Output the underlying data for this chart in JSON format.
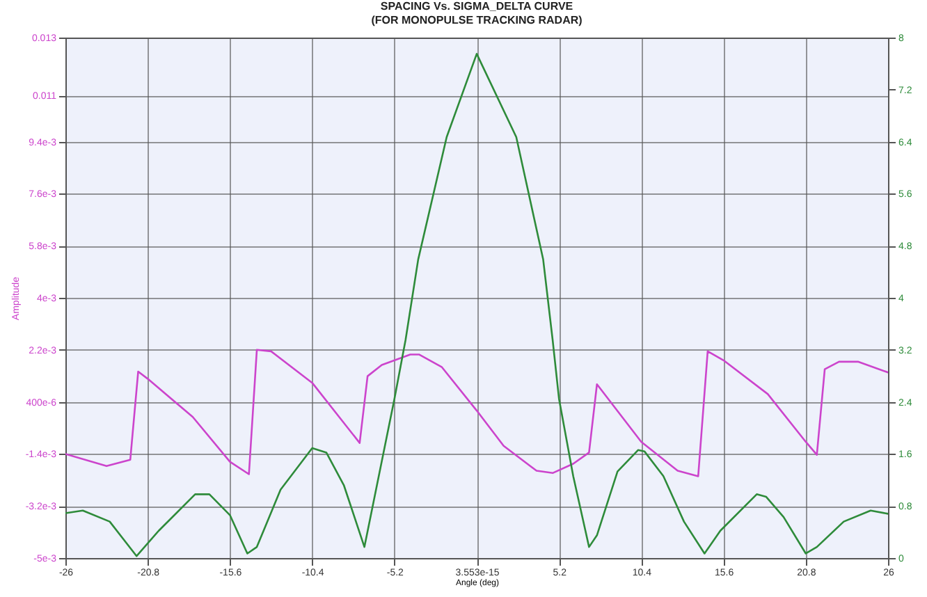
{
  "chart_data": {
    "type": "line",
    "title": "SPACING Vs. SIGMA_DELTA CURVE\n(FOR MONOPULSE TRACKING RADAR)",
    "xlabel": "Angle (deg)",
    "ylabel": "Amplitude",
    "xlim": [
      -26,
      26
    ],
    "xticks": [
      -26,
      -20.8,
      -15.6,
      -10.4,
      -5.2,
      3.553e-15,
      5.2,
      10.4,
      15.6,
      20.8,
      26
    ],
    "ylim": [
      -0.005,
      0.013
    ],
    "yticks": [
      {
        "value": -0.005,
        "label": "-5e-3"
      },
      {
        "value": -0.0032,
        "label": "-3.2e-3"
      },
      {
        "value": -0.0014,
        "label": "-1.4e-3"
      },
      {
        "value": 0.0004,
        "label": "400e-6"
      },
      {
        "value": 0.0022,
        "label": "2.2e-3"
      },
      {
        "value": 0.004,
        "label": "4e-3"
      },
      {
        "value": 0.0058,
        "label": "5.8e-3"
      },
      {
        "value": 0.0076,
        "label": "7.6e-3"
      },
      {
        "value": 0.0094,
        "label": "9.4e-3"
      },
      0.011,
      0.013
    ],
    "y2lim": [
      0,
      8
    ],
    "y2ticks": [
      0,
      0.8,
      1.6,
      2.4,
      3.2,
      4,
      4.8,
      5.6,
      6.4,
      7.2,
      8
    ],
    "grid": true,
    "line_style": "solid",
    "series": [
      {
        "color": "#cc44cc",
        "x": [
          -26,
          -23.4,
          -21.9,
          -21.4,
          -20.8,
          -17.95,
          -15.6,
          -14.4,
          -13.9,
          -13.0,
          -10.4,
          -7.4,
          -6.9,
          -6.0,
          -4.2,
          -3.65,
          -2.2,
          0,
          1.7,
          3.78,
          4.8,
          6.1,
          7.1,
          7.6,
          10.4,
          12.7,
          14.0,
          14.6,
          15.6,
          18.4,
          20.8,
          21.5,
          22.0,
          22.9,
          24.1,
          26
        ],
        "values": [
          -0.0014,
          -0.00182,
          -0.0016,
          0.00145,
          0.0012,
          -0.00012,
          -0.00167,
          -0.0021,
          0.0022,
          0.00215,
          0.00106,
          -0.00102,
          0.00129,
          0.00168,
          0.00204,
          0.00204,
          0.0016,
          0.0001,
          -0.00112,
          -0.00198,
          -0.00206,
          -0.00174,
          -0.00135,
          0.00101,
          -0.00098,
          -0.00198,
          -0.00217,
          0.00215,
          0.00184,
          0.00067,
          -0.00098,
          -0.00143,
          0.00153,
          0.00179,
          0.00179,
          0.00142
        ]
      },
      {
        "color": "#2e8b3a",
        "axis": "y2",
        "x": [
          -26,
          -24.9,
          -23.2,
          -21.5,
          -20.1,
          -17.8,
          -16.9,
          -15.6,
          -14.5,
          -13.9,
          -12.4,
          -10.4,
          -9.5,
          -8.4,
          -7.1,
          -5.2,
          -4.5,
          -3.7,
          -1.9,
          0,
          2.5,
          4.2,
          4.8,
          5.2,
          6.1,
          7.1,
          7.6,
          8.9,
          10.2,
          10.6,
          11.8,
          13.1,
          14.4,
          15.4,
          17.7,
          18.3,
          19.4,
          20.8,
          21.5,
          23.2,
          24.9,
          26
        ],
        "values": [
          0.69,
          0.73,
          0.56,
          0.03,
          0.42,
          0.98,
          0.98,
          0.66,
          0.07,
          0.17,
          1.05,
          1.69,
          1.62,
          1.12,
          0.17,
          2.45,
          3.35,
          4.59,
          6.47,
          7.75,
          6.47,
          4.59,
          3.35,
          2.45,
          1.26,
          0.17,
          0.35,
          1.33,
          1.66,
          1.64,
          1.26,
          0.56,
          0.07,
          0.42,
          0.98,
          0.94,
          0.63,
          0.07,
          0.17,
          0.56,
          0.73,
          0.68
        ]
      }
    ]
  }
}
